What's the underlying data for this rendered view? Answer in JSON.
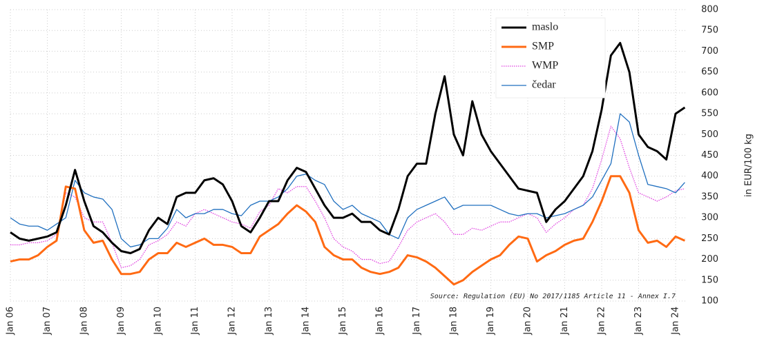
{
  "chart_data": {
    "type": "line",
    "y_label": "in EUR/100 kg",
    "annotation": "Source: Regulation (EU) No 2017/1185 Article 11 - Annex I.7",
    "x": [
      "2006-01",
      "2006-04",
      "2006-07",
      "2006-10",
      "2007-01",
      "2007-04",
      "2007-07",
      "2007-10",
      "2008-01",
      "2008-04",
      "2008-07",
      "2008-10",
      "2009-01",
      "2009-04",
      "2009-07",
      "2009-10",
      "2010-01",
      "2010-04",
      "2010-07",
      "2010-10",
      "2011-01",
      "2011-04",
      "2011-07",
      "2011-10",
      "2012-01",
      "2012-04",
      "2012-07",
      "2012-10",
      "2013-01",
      "2013-04",
      "2013-07",
      "2013-10",
      "2014-01",
      "2014-04",
      "2014-07",
      "2014-10",
      "2015-01",
      "2015-04",
      "2015-07",
      "2015-10",
      "2016-01",
      "2016-04",
      "2016-07",
      "2016-10",
      "2017-01",
      "2017-04",
      "2017-07",
      "2017-10",
      "2018-01",
      "2018-04",
      "2018-07",
      "2018-10",
      "2019-01",
      "2019-04",
      "2019-07",
      "2019-10",
      "2020-01",
      "2020-04",
      "2020-07",
      "2020-10",
      "2021-01",
      "2021-04",
      "2021-07",
      "2021-10",
      "2022-01",
      "2022-04",
      "2022-07",
      "2022-10",
      "2023-01",
      "2023-04",
      "2023-07",
      "2023-10",
      "2024-01",
      "2024-04"
    ],
    "series": [
      {
        "name": "maslo",
        "color": "#000000",
        "line_width": "thick",
        "line_style": "solid",
        "values": [
          265,
          250,
          245,
          250,
          255,
          265,
          330,
          415,
          340,
          280,
          265,
          240,
          220,
          215,
          225,
          270,
          300,
          285,
          350,
          360,
          360,
          390,
          395,
          380,
          340,
          280,
          265,
          300,
          340,
          340,
          390,
          420,
          410,
          370,
          330,
          300,
          300,
          310,
          290,
          290,
          270,
          260,
          320,
          400,
          430,
          430,
          550,
          640,
          500,
          450,
          580,
          500,
          460,
          430,
          400,
          370,
          365,
          360,
          290,
          320,
          340,
          370,
          400,
          460,
          560,
          690,
          720,
          650,
          500,
          470,
          460,
          440,
          550,
          565
        ]
      },
      {
        "name": "SMP",
        "color": "#ff6a13",
        "line_width": "thick",
        "line_style": "solid",
        "values": [
          195,
          200,
          200,
          210,
          230,
          245,
          375,
          370,
          270,
          240,
          245,
          200,
          165,
          165,
          170,
          200,
          215,
          215,
          240,
          230,
          240,
          250,
          235,
          235,
          230,
          215,
          215,
          255,
          270,
          285,
          310,
          330,
          315,
          290,
          230,
          210,
          200,
          200,
          180,
          170,
          165,
          170,
          180,
          210,
          205,
          195,
          180,
          160,
          140,
          150,
          170,
          185,
          200,
          210,
          235,
          255,
          250,
          195,
          210,
          220,
          235,
          245,
          250,
          290,
          340,
          400,
          400,
          360,
          270,
          240,
          245,
          230,
          255,
          245
        ]
      },
      {
        "name": "WMP",
        "color": "#e040e0",
        "line_width": "thin",
        "line_style": "dotted",
        "values": [
          235,
          235,
          240,
          240,
          245,
          260,
          360,
          350,
          300,
          290,
          290,
          240,
          180,
          185,
          200,
          235,
          245,
          260,
          290,
          280,
          310,
          320,
          310,
          300,
          290,
          285,
          275,
          315,
          330,
          370,
          360,
          375,
          375,
          340,
          300,
          250,
          230,
          220,
          200,
          200,
          190,
          195,
          230,
          270,
          290,
          300,
          310,
          290,
          260,
          260,
          275,
          270,
          280,
          290,
          290,
          300,
          310,
          300,
          265,
          285,
          300,
          320,
          330,
          370,
          440,
          520,
          490,
          420,
          360,
          350,
          340,
          350,
          365,
          370
        ]
      },
      {
        "name": "čedar",
        "color": "#1f6fbf",
        "line_width": "thin",
        "line_style": "solid",
        "values": [
          300,
          285,
          280,
          280,
          270,
          285,
          300,
          390,
          360,
          350,
          345,
          320,
          250,
          230,
          235,
          250,
          250,
          275,
          320,
          300,
          310,
          310,
          320,
          320,
          310,
          305,
          330,
          340,
          340,
          350,
          370,
          400,
          405,
          390,
          380,
          340,
          320,
          330,
          310,
          300,
          290,
          260,
          250,
          300,
          320,
          330,
          340,
          350,
          320,
          330,
          330,
          330,
          330,
          320,
          310,
          305,
          310,
          310,
          300,
          305,
          310,
          320,
          330,
          350,
          390,
          430,
          550,
          530,
          450,
          380,
          375,
          370,
          360,
          385
        ]
      }
    ],
    "xticks": [
      {
        "value": "2006-01",
        "label": "Jan 06"
      },
      {
        "value": "2007-01",
        "label": "Jan 07"
      },
      {
        "value": "2008-01",
        "label": "Jan 08"
      },
      {
        "value": "2009-01",
        "label": "Jan 09"
      },
      {
        "value": "2010-01",
        "label": "Jan 10"
      },
      {
        "value": "2011-01",
        "label": "Jan 11"
      },
      {
        "value": "2012-01",
        "label": "Jan 12"
      },
      {
        "value": "2013-01",
        "label": "Jan 13"
      },
      {
        "value": "2014-01",
        "label": "Jan 14"
      },
      {
        "value": "2015-01",
        "label": "Jan 15"
      },
      {
        "value": "2016-01",
        "label": "Jan 16"
      },
      {
        "value": "2017-01",
        "label": "Jan 17"
      },
      {
        "value": "2018-01",
        "label": "Jan 18"
      },
      {
        "value": "2019-01",
        "label": "Jan 19"
      },
      {
        "value": "2020-01",
        "label": "Jan 20"
      },
      {
        "value": "2021-01",
        "label": "Jan 21"
      },
      {
        "value": "2022-01",
        "label": "Jan 22"
      },
      {
        "value": "2023-01",
        "label": "Jan 23"
      },
      {
        "value": "2024-01",
        "label": "Jan 24"
      }
    ],
    "ylim": [
      100,
      800
    ],
    "yticks": [
      100,
      150,
      200,
      250,
      300,
      350,
      400,
      450,
      500,
      550,
      600,
      650,
      700,
      750,
      800
    ],
    "grid": true,
    "legend": "top-right"
  }
}
